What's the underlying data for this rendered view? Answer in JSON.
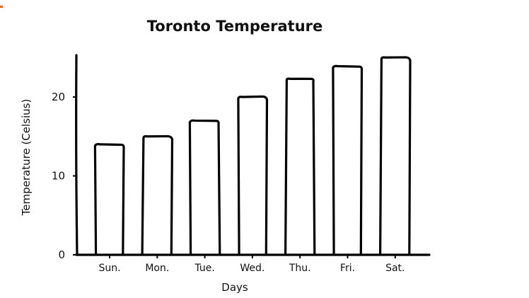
{
  "chart_data": {
    "type": "bar",
    "title": "Toronto Temperature",
    "xlabel": "Days",
    "ylabel": "Temperature (Celsius)",
    "categories": [
      "Sun.",
      "Mon.",
      "Tue.",
      "Wed.",
      "Thu.",
      "Fri.",
      "Sat."
    ],
    "values": [
      14,
      15,
      17,
      20,
      22.3,
      23.9,
      25
    ],
    "ylim": [
      0,
      25.5
    ],
    "yticks": [
      "0",
      "10",
      "20"
    ],
    "grid": false,
    "colors": {
      "bar_fill": "#ffffff",
      "bar_stroke": "#000000",
      "accent_mark": "#e06020"
    }
  }
}
